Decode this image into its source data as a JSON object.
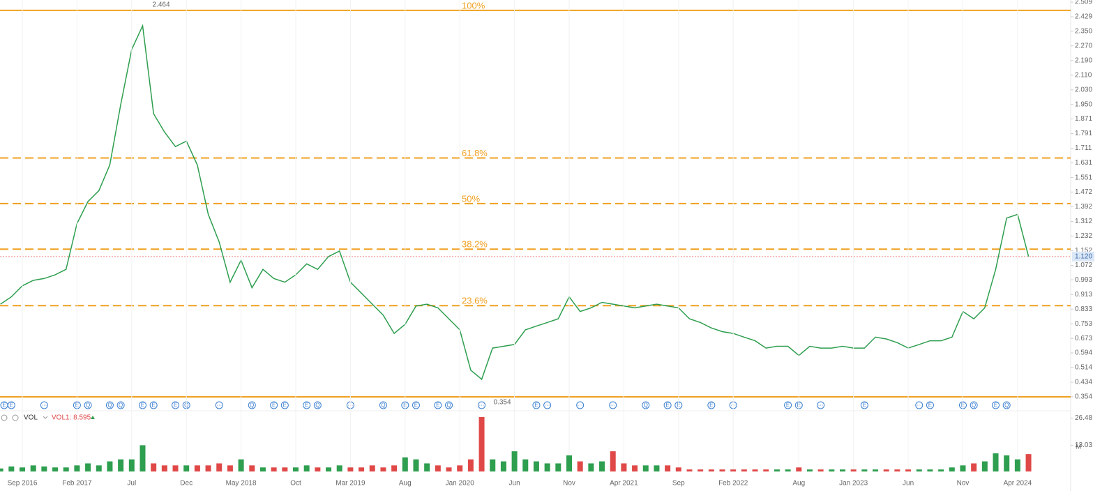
{
  "chart_data": [
    {
      "type": "line",
      "color": "#2e9e4f",
      "x": [
        "2016-07",
        "2016-08",
        "2016-09",
        "2016-10",
        "2016-11",
        "2016-12",
        "2017-01",
        "2017-02",
        "2017-03",
        "2017-04",
        "2017-05",
        "2017-06",
        "2017-07",
        "2017-08",
        "2017-09",
        "2017-10",
        "2017-11",
        "2017-12",
        "2018-01",
        "2018-02",
        "2018-03",
        "2018-04",
        "2018-05",
        "2018-06",
        "2018-07",
        "2018-08",
        "2018-09",
        "2018-10",
        "2018-11",
        "2018-12",
        "2019-01",
        "2019-02",
        "2019-03",
        "2019-04",
        "2019-05",
        "2019-06",
        "2019-07",
        "2019-08",
        "2019-09",
        "2019-10",
        "2019-11",
        "2019-12",
        "2020-01",
        "2020-02",
        "2020-03",
        "2020-04",
        "2020-05",
        "2020-06",
        "2020-07",
        "2020-08",
        "2020-09",
        "2020-10",
        "2020-11",
        "2020-12",
        "2021-01",
        "2021-02",
        "2021-03",
        "2021-04",
        "2021-05",
        "2021-06",
        "2021-07",
        "2021-08",
        "2021-09",
        "2021-10",
        "2021-11",
        "2021-12",
        "2022-01",
        "2022-02",
        "2022-03",
        "2022-04",
        "2022-05",
        "2022-06",
        "2022-07",
        "2022-08",
        "2022-09",
        "2022-10",
        "2022-11",
        "2022-12",
        "2023-01",
        "2023-02",
        "2023-03",
        "2023-04",
        "2023-05",
        "2023-06",
        "2023-07",
        "2023-08",
        "2023-09",
        "2023-10",
        "2023-11",
        "2023-12",
        "2024-01",
        "2024-02",
        "2024-03",
        "2024-04",
        "2024-05"
      ],
      "values": [
        0.86,
        0.9,
        0.96,
        0.99,
        1.0,
        1.02,
        1.05,
        1.3,
        1.42,
        1.48,
        1.62,
        1.95,
        2.25,
        2.38,
        1.9,
        1.8,
        1.72,
        1.75,
        1.62,
        1.35,
        1.2,
        0.98,
        1.1,
        0.95,
        1.05,
        1.0,
        0.98,
        1.02,
        1.08,
        1.05,
        1.12,
        1.15,
        0.98,
        0.92,
        0.86,
        0.8,
        0.7,
        0.75,
        0.85,
        0.86,
        0.84,
        0.78,
        0.72,
        0.5,
        0.45,
        0.62,
        0.63,
        0.64,
        0.72,
        0.74,
        0.76,
        0.78,
        0.9,
        0.82,
        0.84,
        0.87,
        0.86,
        0.85,
        0.84,
        0.85,
        0.86,
        0.85,
        0.84,
        0.78,
        0.76,
        0.73,
        0.71,
        0.7,
        0.68,
        0.66,
        0.62,
        0.63,
        0.63,
        0.58,
        0.63,
        0.62,
        0.62,
        0.63,
        0.62,
        0.62,
        0.68,
        0.67,
        0.65,
        0.62,
        0.64,
        0.66,
        0.66,
        0.68,
        0.82,
        0.78,
        0.84,
        1.05,
        1.33,
        1.35,
        1.12
      ],
      "ylim": [
        0.354,
        2.509
      ],
      "yticks": [
        {
          "value": 2.509,
          "label": "2.509"
        },
        {
          "value": 2.429,
          "label": "2.429"
        },
        {
          "value": 2.35,
          "label": "2.350"
        },
        {
          "value": 2.27,
          "label": "2.270"
        },
        {
          "value": 2.19,
          "label": "2.190"
        },
        {
          "value": 2.11,
          "label": "2.110"
        },
        {
          "value": 2.03,
          "label": "2.030"
        },
        {
          "value": 1.95,
          "label": "1.950"
        },
        {
          "value": 1.871,
          "label": "1.871"
        },
        {
          "value": 1.791,
          "label": "1.791"
        },
        {
          "value": 1.711,
          "label": "1.711"
        },
        {
          "value": 1.631,
          "label": "1.631"
        },
        {
          "value": 1.551,
          "label": "1.551"
        },
        {
          "value": 1.472,
          "label": "1.472"
        },
        {
          "value": 1.392,
          "label": "1.392"
        },
        {
          "value": 1.312,
          "label": "1.312"
        },
        {
          "value": 1.232,
          "label": "1.232"
        },
        {
          "value": 1.152,
          "label": "1.152"
        },
        {
          "value": 1.072,
          "label": "1.072"
        },
        {
          "value": 0.993,
          "label": "0.993"
        },
        {
          "value": 0.913,
          "label": "0.913"
        },
        {
          "value": 0.833,
          "label": "0.833"
        },
        {
          "value": 0.753,
          "label": "0.753"
        },
        {
          "value": 0.673,
          "label": "0.673"
        },
        {
          "value": 0.594,
          "label": "0.594"
        },
        {
          "value": 0.514,
          "label": "0.514"
        },
        {
          "value": 0.434,
          "label": "0.434"
        },
        {
          "value": 0.354,
          "label": "0.354"
        }
      ],
      "level_color": "#f0a020",
      "levels": [
        {
          "value": 2.464,
          "label": "100%",
          "style": "solid"
        },
        {
          "value": 1.658,
          "label": "61.8%",
          "style": "dashed"
        },
        {
          "value": 1.409,
          "label": "50%",
          "style": "dashed"
        },
        {
          "value": 1.16,
          "label": "38.2%",
          "style": "dashed"
        },
        {
          "value": 0.852,
          "label": "23.6%",
          "style": "dashed"
        },
        {
          "value": 0.354,
          "style": "solid"
        }
      ],
      "high": 2.464,
      "low": 0.354,
      "last_price": {
        "value": 1.12,
        "label": "1.120"
      },
      "events": [
        {
          "x": "2016-07",
          "label": "E"
        },
        {
          "x": "2016-08",
          "label": "E"
        },
        {
          "x": "2016-11",
          "label": "⋯"
        },
        {
          "x": "2017-02",
          "label": "E"
        },
        {
          "x": "2017-03",
          "label": "Q"
        },
        {
          "x": "2017-05",
          "label": "Q"
        },
        {
          "x": "2017-06",
          "label": "Q"
        },
        {
          "x": "2017-08",
          "label": "E"
        },
        {
          "x": "2017-09",
          "label": "E"
        },
        {
          "x": "2017-11",
          "label": "E"
        },
        {
          "x": "2017-12",
          "label": "Q"
        },
        {
          "x": "2018-03",
          "label": "⋯"
        },
        {
          "x": "2018-06",
          "label": "Q"
        },
        {
          "x": "2018-08",
          "label": "E"
        },
        {
          "x": "2018-09",
          "label": "E"
        },
        {
          "x": "2018-11",
          "label": "E"
        },
        {
          "x": "2018-12",
          "label": "Q"
        },
        {
          "x": "2019-03",
          "label": "⋯"
        },
        {
          "x": "2019-06",
          "label": "Q"
        },
        {
          "x": "2019-08",
          "label": "E"
        },
        {
          "x": "2019-09",
          "label": "E"
        },
        {
          "x": "2019-11",
          "label": "E"
        },
        {
          "x": "2019-12",
          "label": "Q"
        },
        {
          "x": "2020-03",
          "label": "⋯"
        },
        {
          "x": "2020-08",
          "label": "E"
        },
        {
          "x": "2020-09",
          "label": "⋯"
        },
        {
          "x": "2020-12",
          "label": "⋯"
        },
        {
          "x": "2021-03",
          "label": "⋯"
        },
        {
          "x": "2021-06",
          "label": "Q"
        },
        {
          "x": "2021-08",
          "label": "E"
        },
        {
          "x": "2021-09",
          "label": "E"
        },
        {
          "x": "2021-12",
          "label": "E"
        },
        {
          "x": "2022-02",
          "label": "⋯"
        },
        {
          "x": "2022-07",
          "label": "E"
        },
        {
          "x": "2022-08",
          "label": "E"
        },
        {
          "x": "2022-10",
          "label": "⋯"
        },
        {
          "x": "2023-02",
          "label": "E"
        },
        {
          "x": "2023-07",
          "label": "⋯"
        },
        {
          "x": "2023-08",
          "label": "E"
        },
        {
          "x": "2023-11",
          "label": "E"
        },
        {
          "x": "2023-12",
          "label": "Q"
        },
        {
          "x": "2024-02",
          "label": "E"
        },
        {
          "x": "2024-03",
          "label": "Q"
        }
      ]
    },
    {
      "type": "bar",
      "title": "VOL",
      "legend_label": "VOL1: 8.595",
      "unit": "M",
      "up_color": "#2e9e4f",
      "down_color": "#e04848",
      "x": [
        "2016-07",
        "2016-08",
        "2016-09",
        "2016-10",
        "2016-11",
        "2016-12",
        "2017-01",
        "2017-02",
        "2017-03",
        "2017-04",
        "2017-05",
        "2017-06",
        "2017-07",
        "2017-08",
        "2017-09",
        "2017-10",
        "2017-11",
        "2017-12",
        "2018-01",
        "2018-02",
        "2018-03",
        "2018-04",
        "2018-05",
        "2018-06",
        "2018-07",
        "2018-08",
        "2018-09",
        "2018-10",
        "2018-11",
        "2018-12",
        "2019-01",
        "2019-02",
        "2019-03",
        "2019-04",
        "2019-05",
        "2019-06",
        "2019-07",
        "2019-08",
        "2019-09",
        "2019-10",
        "2019-11",
        "2019-12",
        "2020-01",
        "2020-02",
        "2020-03",
        "2020-04",
        "2020-05",
        "2020-06",
        "2020-07",
        "2020-08",
        "2020-09",
        "2020-10",
        "2020-11",
        "2020-12",
        "2021-01",
        "2021-02",
        "2021-03",
        "2021-04",
        "2021-05",
        "2021-06",
        "2021-07",
        "2021-08",
        "2021-09",
        "2021-10",
        "2021-11",
        "2021-12",
        "2022-01",
        "2022-02",
        "2022-03",
        "2022-04",
        "2022-05",
        "2022-06",
        "2022-07",
        "2022-08",
        "2022-09",
        "2022-10",
        "2022-11",
        "2022-12",
        "2023-01",
        "2023-02",
        "2023-03",
        "2023-04",
        "2023-05",
        "2023-06",
        "2023-07",
        "2023-08",
        "2023-09",
        "2023-10",
        "2023-11",
        "2023-12",
        "2024-01",
        "2024-02",
        "2024-03",
        "2024-04",
        "2024-05"
      ],
      "values": [
        1.5,
        2.5,
        2,
        3,
        2.5,
        2,
        2,
        3,
        4,
        3,
        5,
        6,
        6,
        13,
        4,
        3,
        3,
        3,
        3,
        3,
        4,
        3,
        6,
        3,
        2,
        2,
        2,
        2,
        3,
        2,
        2,
        3,
        2,
        2,
        3,
        2,
        3,
        7,
        6,
        4,
        3,
        2,
        3,
        6,
        27,
        6,
        5,
        10,
        6,
        5,
        4,
        4,
        8,
        5,
        4,
        5,
        10,
        4,
        3,
        3,
        3,
        3,
        2,
        1,
        1,
        1,
        1,
        1,
        1,
        1,
        1,
        1,
        1,
        2,
        1,
        1,
        1,
        1,
        1,
        1,
        1,
        1,
        1,
        1,
        1,
        1,
        1,
        2,
        3,
        4,
        5,
        9,
        8,
        6,
        8.595
      ],
      "ylim": [
        0,
        28
      ],
      "yticks": [
        26.48,
        13.03
      ],
      "xticks": [
        {
          "value": "2016-09",
          "label": "Sep 2016"
        },
        {
          "value": "2017-02",
          "label": "Feb 2017"
        },
        {
          "value": "2017-07",
          "label": "Jul"
        },
        {
          "value": "2017-12",
          "label": "Dec"
        },
        {
          "value": "2018-05",
          "label": "May 2018"
        },
        {
          "value": "2018-10",
          "label": "Oct"
        },
        {
          "value": "2019-03",
          "label": "Mar 2019"
        },
        {
          "value": "2019-08",
          "label": "Aug"
        },
        {
          "value": "2020-01",
          "label": "Jan 2020"
        },
        {
          "value": "2020-06",
          "label": "Jun"
        },
        {
          "value": "2020-11",
          "label": "Nov"
        },
        {
          "value": "2021-04",
          "label": "Apr 2021"
        },
        {
          "value": "2021-09",
          "label": "Sep"
        },
        {
          "value": "2022-02",
          "label": "Feb 2022"
        },
        {
          "value": "2022-08",
          "label": "Aug"
        },
        {
          "value": "2023-01",
          "label": "Jan 2023"
        },
        {
          "value": "2023-06",
          "label": "Jun"
        },
        {
          "value": "2023-11",
          "label": "Nov"
        },
        {
          "value": "2024-04",
          "label": "Apr 2024"
        }
      ]
    }
  ]
}
